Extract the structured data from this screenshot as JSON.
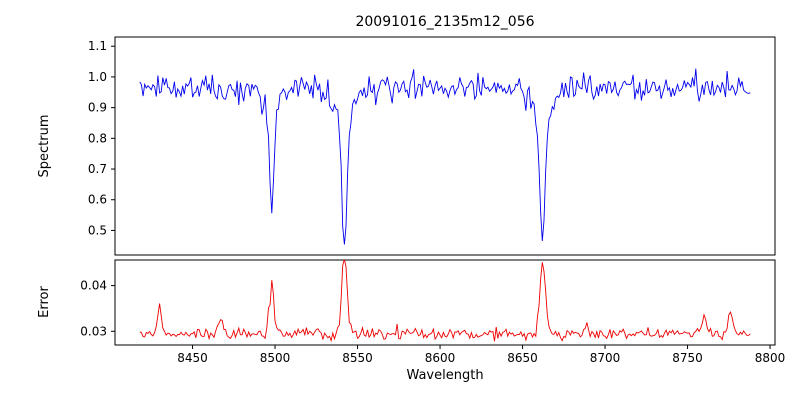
{
  "chart_data": {
    "type": "line",
    "title": "20091016_2135m12_056",
    "xlabel": "Wavelength",
    "grid": false,
    "xlim": [
      8403,
      8803
    ],
    "x_start": 8418,
    "x_end": 8788,
    "x_step": 1,
    "x_ticks": [
      8450,
      8500,
      8550,
      8600,
      8650,
      8700,
      8750,
      8800
    ],
    "x_tick_labels": [
      "8450",
      "8500",
      "8550",
      "8600",
      "8650",
      "8700",
      "8750",
      "8800"
    ],
    "panels": [
      {
        "name": "spectrum",
        "ylabel": "Spectrum",
        "color": "#0000ee",
        "ylim": [
          0.42,
          1.13
        ],
        "y_ticks": [
          0.5,
          0.6,
          0.7,
          0.8,
          0.9,
          1.0,
          1.1
        ],
        "y_tick_labels": [
          "0.5",
          "0.6",
          "0.7",
          "0.8",
          "0.9",
          "1.0",
          "1.1"
        ],
        "continuum": 0.965,
        "noise_sigma": 0.021,
        "absorption_lines": [
          {
            "center": 8498.0,
            "depth": 0.33,
            "sigma": 1.3,
            "wing_depth": 0.07,
            "wing_sigma": 4.0
          },
          {
            "center": 8542.1,
            "depth": 0.42,
            "sigma": 1.6,
            "wing_depth": 0.1,
            "wing_sigma": 6.0
          },
          {
            "center": 8662.1,
            "depth": 0.4,
            "sigma": 1.6,
            "wing_depth": 0.1,
            "wing_sigma": 5.5
          }
        ]
      },
      {
        "name": "error",
        "ylabel": "Error",
        "color": "#ee0000",
        "ylim": [
          0.027,
          0.0456
        ],
        "y_ticks": [
          0.03,
          0.04
        ],
        "y_tick_labels": [
          "0.03",
          "0.04"
        ],
        "baseline": 0.0294,
        "noise_sigma": 0.0006,
        "peaks": [
          {
            "center": 8430.0,
            "amplitude": 0.0062,
            "sigma": 1.3
          },
          {
            "center": 8467.0,
            "amplitude": 0.0032,
            "sigma": 1.5
          },
          {
            "center": 8498.0,
            "amplitude": 0.0102,
            "sigma": 1.5
          },
          {
            "center": 8542.1,
            "amplitude": 0.0152,
            "sigma": 1.7
          },
          {
            "center": 8662.1,
            "amplitude": 0.0148,
            "sigma": 1.7
          },
          {
            "center": 8689.0,
            "amplitude": 0.0022,
            "sigma": 1.3
          },
          {
            "center": 8760.0,
            "amplitude": 0.0042,
            "sigma": 1.4
          },
          {
            "center": 8776.0,
            "amplitude": 0.004,
            "sigma": 1.4
          }
        ]
      }
    ]
  }
}
